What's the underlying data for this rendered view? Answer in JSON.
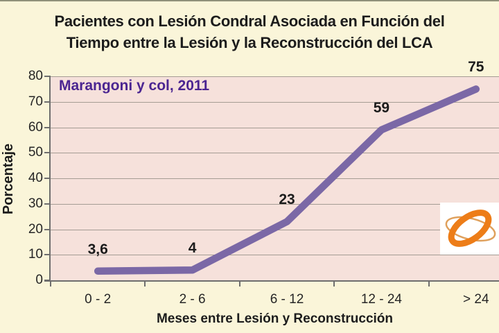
{
  "chart_data": {
    "type": "line",
    "title_line1": "Pacientes con Lesión Condral Asociada en Función del",
    "title_line2": "Tiempo entre la Lesión y la Reconstrucción del LCA",
    "annotation": "Marangoni y col, 2011",
    "annotation_color": "#4B2591",
    "xlabel": "Meses entre Lesión y Reconstrucción",
    "ylabel": "Porcentaje",
    "categories": [
      "0 - 2",
      "2 - 6",
      "6 - 12",
      "12 - 24",
      "> 24"
    ],
    "values": [
      3.6,
      4,
      23,
      59,
      75
    ],
    "value_labels": [
      "3,6",
      "4",
      "23",
      "59",
      "75"
    ],
    "ylim": [
      0,
      80
    ],
    "ytick_step": 10,
    "grid": true,
    "legend": "none",
    "line_color": "#7B68A6",
    "plot_bg": "#F6E1DB",
    "outer_bg": "#FAF5D9",
    "logo_icon": "orange-orbit-logo"
  }
}
